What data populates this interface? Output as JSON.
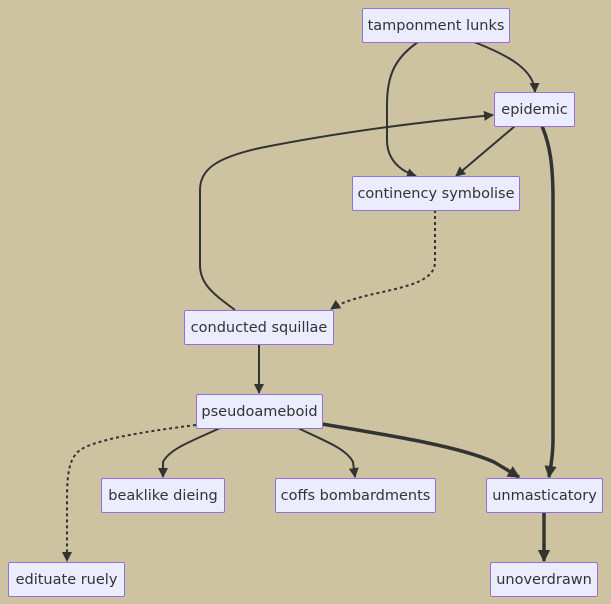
{
  "diagram": {
    "type": "flowchart",
    "colors": {
      "background": "#cdc3a0",
      "node_fill": "#ececff",
      "node_border": "#9370db",
      "edge": "#333333",
      "text": "#333333"
    },
    "nodes": {
      "tamponment_lunks": "tamponment lunks",
      "epidemic": "epidemic",
      "continency_symbolise": "continency symbolise",
      "conducted_squillae": "conducted squillae",
      "pseudoameboid": "pseudoameboid",
      "beaklike_dieing": "beaklike dieing",
      "coffs_bombardments": "coffs bombardments",
      "unmasticatory": "unmasticatory",
      "edituate_ruely": "edituate ruely",
      "unoverdrawn": "unoverdrawn"
    },
    "edges": [
      {
        "from": "tamponment lunks",
        "to": "epidemic",
        "style": "normal"
      },
      {
        "from": "tamponment lunks",
        "to": "continency symbolise",
        "style": "normal"
      },
      {
        "from": "epidemic",
        "to": "continency symbolise",
        "style": "normal"
      },
      {
        "from": "epidemic",
        "to": "unmasticatory",
        "style": "thick"
      },
      {
        "from": "continency symbolise",
        "to": "conducted squillae",
        "style": "dotted"
      },
      {
        "from": "conducted squillae",
        "to": "epidemic",
        "style": "normal"
      },
      {
        "from": "conducted squillae",
        "to": "pseudoameboid",
        "style": "normal"
      },
      {
        "from": "pseudoameboid",
        "to": "beaklike dieing",
        "style": "normal"
      },
      {
        "from": "pseudoameboid",
        "to": "coffs bombardments",
        "style": "normal"
      },
      {
        "from": "pseudoameboid",
        "to": "unmasticatory",
        "style": "thick"
      },
      {
        "from": "pseudoameboid",
        "to": "edituate ruely",
        "style": "dotted"
      },
      {
        "from": "unmasticatory",
        "to": "unoverdrawn",
        "style": "thick"
      }
    ]
  }
}
